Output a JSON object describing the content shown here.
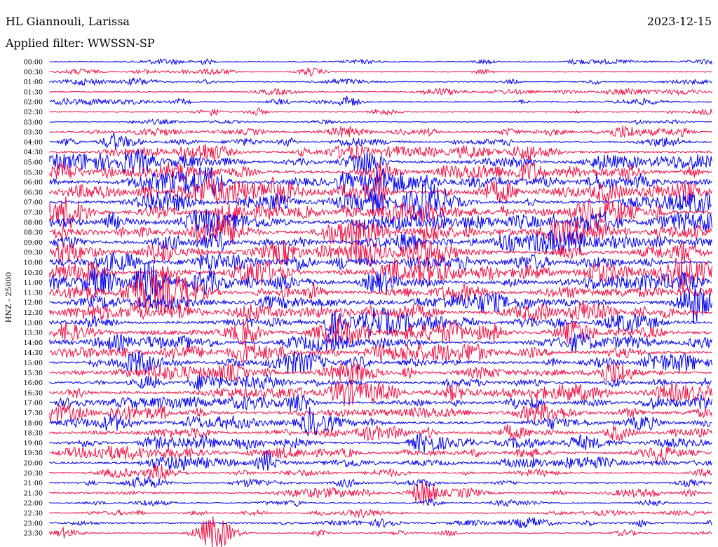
{
  "header": {
    "station": "HL Giannouli, Larissa",
    "date": "2023-12-15",
    "filter": "Applied filter: WWSSN-SP"
  },
  "chart_data": {
    "type": "line",
    "title": "HL Giannouli, Larissa",
    "ylabel": "HNZ - 25000",
    "colors": [
      "#0000ee",
      "#ee1144"
    ],
    "rows": [
      {
        "label": "00:00",
        "activity": 0.15
      },
      {
        "label": "00:30",
        "activity": 0.12
      },
      {
        "label": "01:00",
        "activity": 0.18
      },
      {
        "label": "01:30",
        "activity": 0.16
      },
      {
        "label": "02:00",
        "activity": 0.2
      },
      {
        "label": "02:30",
        "activity": 0.15
      },
      {
        "label": "03:00",
        "activity": 0.08
      },
      {
        "label": "03:30",
        "activity": 0.35
      },
      {
        "label": "04:00",
        "activity": 0.45
      },
      {
        "label": "04:30",
        "activity": 0.6
      },
      {
        "label": "05:00",
        "activity": 0.7
      },
      {
        "label": "05:30",
        "activity": 0.85
      },
      {
        "label": "06:00",
        "activity": 1.0
      },
      {
        "label": "06:30",
        "activity": 0.95
      },
      {
        "label": "07:00",
        "activity": 0.9
      },
      {
        "label": "07:30",
        "activity": 0.95
      },
      {
        "label": "08:00",
        "activity": 0.95
      },
      {
        "label": "08:30",
        "activity": 0.95
      },
      {
        "label": "09:00",
        "activity": 0.9
      },
      {
        "label": "09:30",
        "activity": 0.95
      },
      {
        "label": "10:00",
        "activity": 0.9
      },
      {
        "label": "10:30",
        "activity": 0.95
      },
      {
        "label": "11:00",
        "activity": 0.95
      },
      {
        "label": "11:30",
        "activity": 0.9
      },
      {
        "label": "12:00",
        "activity": 0.85
      },
      {
        "label": "12:30",
        "activity": 0.9
      },
      {
        "label": "13:00",
        "activity": 0.85
      },
      {
        "label": "13:30",
        "activity": 0.85
      },
      {
        "label": "14:00",
        "activity": 0.7
      },
      {
        "label": "14:30",
        "activity": 0.75
      },
      {
        "label": "15:00",
        "activity": 0.65
      },
      {
        "label": "15:30",
        "activity": 0.7
      },
      {
        "label": "16:00",
        "activity": 0.65
      },
      {
        "label": "16:30",
        "activity": 0.8
      },
      {
        "label": "17:00",
        "activity": 0.7
      },
      {
        "label": "17:30",
        "activity": 0.75
      },
      {
        "label": "18:00",
        "activity": 0.75
      },
      {
        "label": "18:30",
        "activity": 0.65
      },
      {
        "label": "19:00",
        "activity": 0.55
      },
      {
        "label": "19:30",
        "activity": 0.6
      },
      {
        "label": "20:00",
        "activity": 0.55
      },
      {
        "label": "20:30",
        "activity": 0.35
      },
      {
        "label": "21:00",
        "activity": 0.3
      },
      {
        "label": "21:30",
        "activity": 0.35
      },
      {
        "label": "22:00",
        "activity": 0.25
      },
      {
        "label": "22:30",
        "activity": 0.25
      },
      {
        "label": "23:00",
        "activity": 0.3
      },
      {
        "label": "23:30",
        "activity": 0.15
      }
    ]
  }
}
